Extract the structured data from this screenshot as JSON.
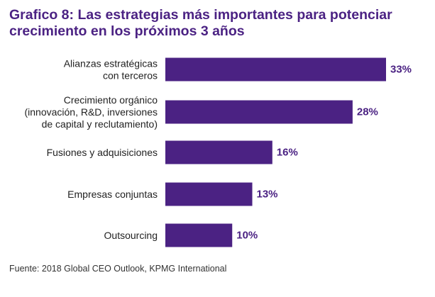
{
  "title": "Grafico 8: Las estrategias más importantes para potenciar crecimiento en los próximos 3 años",
  "source": "Fuente: 2018 Global CEO Outlook, KPMG International",
  "colors": {
    "bar": "#4b2283",
    "value_label": "#4b2283",
    "title": "#4b2283",
    "category_text": "#222222"
  },
  "chart_data": {
    "type": "bar",
    "orientation": "horizontal",
    "categories": [
      [
        "Alianzas estratégicas",
        "con terceros"
      ],
      [
        "Crecimiento orgánico",
        "(innovación, R&D, inversiones",
        "de capital y reclutamiento)"
      ],
      [
        "Fusiones y adquisiciones"
      ],
      [
        "Empresas conjuntas"
      ],
      [
        "Outsourcing"
      ]
    ],
    "values": [
      33,
      28,
      16,
      13,
      10
    ],
    "value_labels": [
      "33%",
      "28%",
      "16%",
      "13%",
      "10%"
    ],
    "xlim": [
      0,
      33
    ],
    "grid": false,
    "legend": false
  }
}
